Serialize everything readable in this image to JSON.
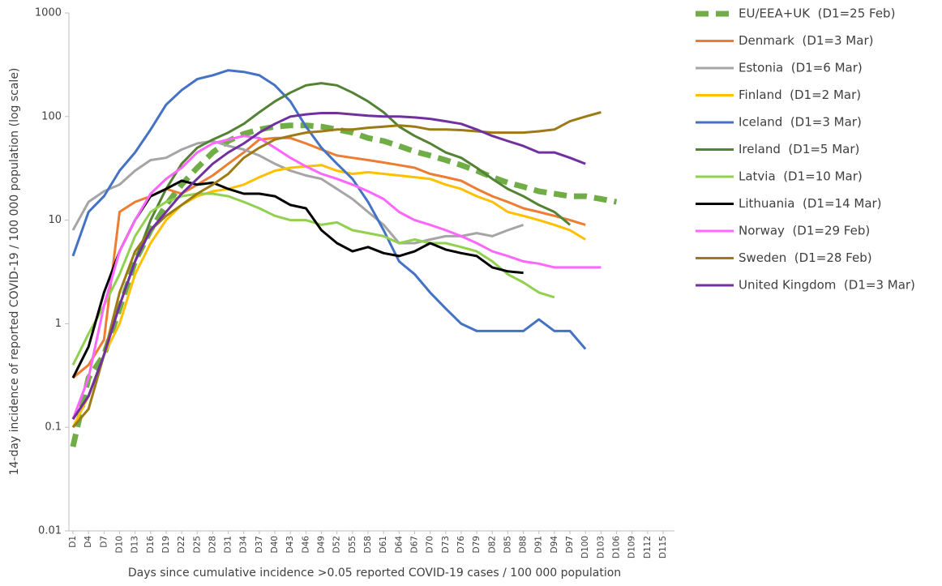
{
  "chart_data": {
    "type": "line",
    "y_label": "14-day incidence of reported COVID-19 / 100 000 population (log scale)",
    "x_label": "Days since cumulative incidence >0.05 reported COVID-19 cases / 100 000 population",
    "log_y": true,
    "legend": "right",
    "xlim": [
      1,
      117
    ],
    "ylim": [
      0.01,
      1000
    ],
    "yticks": [
      0.01,
      0.1,
      1,
      10,
      100,
      1000
    ],
    "xticks": [
      {
        "value": 1,
        "label": "D1"
      },
      {
        "value": 4,
        "label": "D4"
      },
      {
        "value": 7,
        "label": "D7"
      },
      {
        "value": 10,
        "label": "D10"
      },
      {
        "value": 13,
        "label": "D13"
      },
      {
        "value": 16,
        "label": "D16"
      },
      {
        "value": 19,
        "label": "D19"
      },
      {
        "value": 22,
        "label": "D22"
      },
      {
        "value": 25,
        "label": "D25"
      },
      {
        "value": 28,
        "label": "D28"
      },
      {
        "value": 31,
        "label": "D31"
      },
      {
        "value": 34,
        "label": "D34"
      },
      {
        "value": 37,
        "label": "D37"
      },
      {
        "value": 40,
        "label": "D40"
      },
      {
        "value": 43,
        "label": "D43"
      },
      {
        "value": 46,
        "label": "D46"
      },
      {
        "value": 49,
        "label": "D49"
      },
      {
        "value": 52,
        "label": "D52"
      },
      {
        "value": 55,
        "label": "D55"
      },
      {
        "value": 58,
        "label": "D58"
      },
      {
        "value": 61,
        "label": "D61"
      },
      {
        "value": 64,
        "label": "D64"
      },
      {
        "value": 67,
        "label": "D67"
      },
      {
        "value": 70,
        "label": "D70"
      },
      {
        "value": 73,
        "label": "D73"
      },
      {
        "value": 76,
        "label": "D76"
      },
      {
        "value": 79,
        "label": "D79"
      },
      {
        "value": 82,
        "label": "D82"
      },
      {
        "value": 85,
        "label": "D85"
      },
      {
        "value": 88,
        "label": "D88"
      },
      {
        "value": 91,
        "label": "D91"
      },
      {
        "value": 94,
        "label": "D94"
      },
      {
        "value": 97,
        "label": "D97"
      },
      {
        "value": 100,
        "label": "D100"
      },
      {
        "value": 103,
        "label": "D103"
      },
      {
        "value": 106,
        "label": "D106"
      },
      {
        "value": 109,
        "label": "D109"
      },
      {
        "value": 112,
        "label": "D112"
      },
      {
        "value": 115,
        "label": "D115"
      }
    ],
    "x": [
      1,
      4,
      7,
      10,
      13,
      16,
      19,
      22,
      25,
      28,
      31,
      34,
      37,
      40,
      43,
      46,
      49,
      52,
      55,
      58,
      61,
      64,
      67,
      70,
      73,
      76,
      79,
      82,
      85,
      88,
      91,
      94,
      97,
      100,
      103,
      106,
      109,
      112,
      115
    ],
    "series": [
      {
        "name": "EU/EEA+UK  (D1=25 Feb)",
        "color": "#70ad47",
        "dashed": true,
        "values": [
          0.065,
          0.3,
          0.5,
          1.4,
          4,
          8,
          14,
          22,
          32,
          45,
          58,
          68,
          75,
          80,
          82,
          82,
          80,
          75,
          70,
          62,
          58,
          52,
          46,
          42,
          38,
          34,
          30,
          26,
          23,
          21,
          19,
          18,
          17,
          17,
          16,
          15,
          null,
          null,
          null
        ]
      },
      {
        "name": "Denmark  (D1=3 Mar)",
        "color": "#ed7d31",
        "values": [
          0.3,
          0.4,
          0.7,
          12,
          15,
          17,
          20,
          18,
          22,
          27,
          35,
          45,
          60,
          62,
          62,
          55,
          48,
          42,
          40,
          38,
          36,
          34,
          32,
          28,
          26,
          24,
          20,
          17,
          15,
          13,
          12,
          11,
          10,
          9,
          null,
          null,
          null,
          null,
          null
        ]
      },
      {
        "name": "Estonia  (D1=6 Mar)",
        "color": "#a5a5a5",
        "values": [
          8,
          15,
          19,
          22,
          30,
          38,
          40,
          48,
          55,
          58,
          52,
          48,
          42,
          35,
          30,
          27,
          25,
          20,
          16,
          12,
          9,
          6,
          6,
          6.5,
          7,
          7,
          7.5,
          7,
          8,
          9,
          null,
          null,
          null,
          null,
          null,
          null,
          null,
          null,
          null
        ]
      },
      {
        "name": "Finland  (D1=2 Mar)",
        "color": "#ffc000",
        "values": [
          0.1,
          0.2,
          0.5,
          1,
          3,
          6,
          10,
          14,
          17,
          19,
          20,
          22,
          26,
          30,
          32,
          33,
          34,
          30,
          28,
          29,
          28,
          27,
          26,
          25,
          22,
          20,
          17,
          15,
          12,
          11,
          10,
          9,
          8,
          6.5,
          null,
          null,
          null,
          null,
          null
        ]
      },
      {
        "name": "Iceland  (D1=3 Mar)",
        "color": "#4472c4",
        "values": [
          4.5,
          12,
          17,
          30,
          45,
          75,
          130,
          180,
          230,
          250,
          280,
          270,
          250,
          200,
          140,
          80,
          50,
          35,
          25,
          15,
          8,
          4,
          3,
          2,
          1.4,
          1,
          0.85,
          0.85,
          0.85,
          0.85,
          1.1,
          0.85,
          0.85,
          0.57,
          null,
          null,
          null,
          null,
          null
        ]
      },
      {
        "name": "Ireland  (D1=5 Mar)",
        "color": "#548235",
        "values": [
          0.12,
          0.2,
          0.5,
          1.5,
          4,
          10,
          20,
          35,
          50,
          60,
          70,
          85,
          110,
          140,
          170,
          200,
          210,
          200,
          170,
          140,
          110,
          80,
          65,
          55,
          45,
          40,
          32,
          25,
          20,
          17,
          14,
          12,
          9,
          null,
          null,
          null,
          null,
          null,
          null
        ]
      },
      {
        "name": "Latvia  (D1=10 Mar)",
        "color": "#92d050",
        "values": [
          0.4,
          0.8,
          1.5,
          3,
          7,
          12,
          15,
          17,
          18,
          18,
          17,
          15,
          13,
          11,
          10,
          10,
          9,
          9.5,
          8,
          7.5,
          7,
          6,
          6.5,
          6,
          6,
          5.5,
          5,
          4,
          3,
          2.5,
          2,
          1.8,
          null,
          null,
          null,
          null,
          null,
          null,
          null
        ]
      },
      {
        "name": "Lithuania  (D1=14 Mar)",
        "color": "#000000",
        "values": [
          0.3,
          0.6,
          2,
          5,
          10,
          17,
          20,
          24,
          22,
          23,
          20,
          18,
          18,
          17,
          14,
          13,
          8,
          6,
          5,
          5.5,
          4.8,
          4.5,
          5,
          6,
          5.2,
          4.8,
          4.5,
          3.5,
          3.2,
          3.1,
          null,
          null,
          null,
          null,
          null,
          null,
          null,
          null,
          null
        ]
      },
      {
        "name": "Norway  (D1=29 Feb)",
        "color": "#ff66ff",
        "values": [
          0.12,
          0.3,
          1.5,
          5,
          10,
          18,
          25,
          32,
          45,
          55,
          60,
          65,
          62,
          50,
          40,
          33,
          28,
          25,
          22,
          19,
          16,
          12,
          10,
          9,
          8,
          7,
          6,
          5,
          4.5,
          4,
          3.8,
          3.5,
          3.5,
          3.5,
          3.5,
          null,
          null,
          null,
          null
        ]
      },
      {
        "name": "Sweden  (D1=28 Feb)",
        "color": "#9c7a14",
        "values": [
          0.1,
          0.15,
          0.5,
          2,
          5,
          8,
          11,
          14,
          18,
          22,
          28,
          40,
          50,
          60,
          65,
          70,
          72,
          75,
          75,
          78,
          80,
          82,
          80,
          75,
          75,
          74,
          72,
          70,
          70,
          70,
          72,
          75,
          90,
          100,
          110,
          null,
          null,
          null,
          null
        ]
      },
      {
        "name": "United Kingdom  (D1=3 Mar)",
        "color": "#7030a0",
        "values": [
          0.12,
          0.2,
          0.5,
          1.5,
          4,
          8,
          12,
          18,
          25,
          35,
          45,
          55,
          70,
          85,
          100,
          105,
          108,
          108,
          105,
          102,
          100,
          100,
          98,
          95,
          90,
          85,
          75,
          65,
          58,
          52,
          45,
          45,
          40,
          35,
          null,
          null,
          null,
          null,
          null
        ]
      }
    ]
  }
}
